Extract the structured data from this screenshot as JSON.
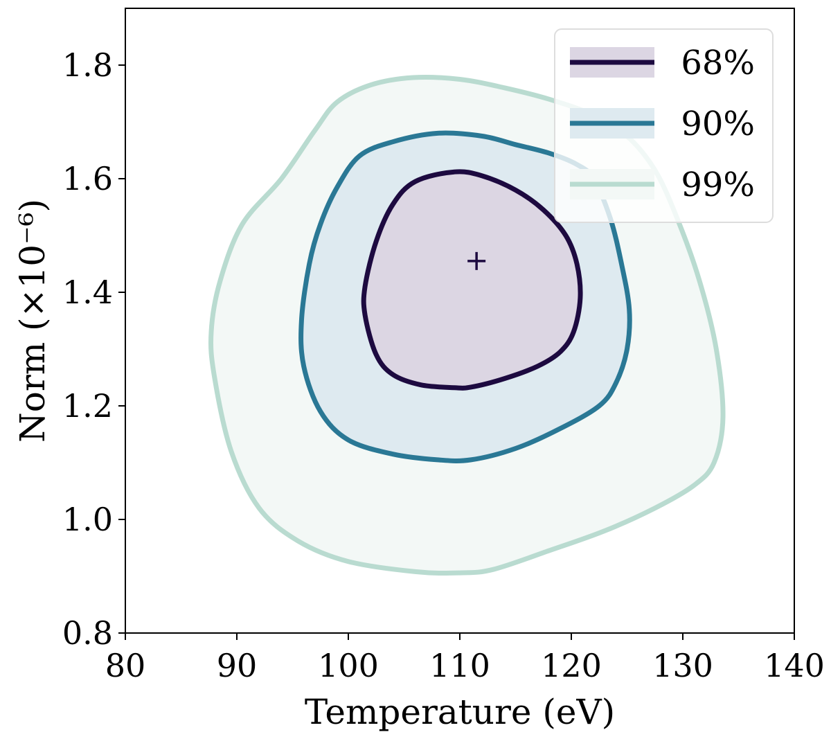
{
  "chart_data": {
    "type": "contour",
    "title": "",
    "xlabel": "Temperature (eV)",
    "ylabel": "Norm (×10⁻⁶)",
    "xlim": [
      80,
      140
    ],
    "ylim": [
      0.8,
      1.9
    ],
    "xticks": [
      80,
      90,
      100,
      110,
      120,
      130,
      140
    ],
    "xtick_labels": [
      "80",
      "90",
      "100",
      "110",
      "120",
      "130",
      "140"
    ],
    "yticks": [
      0.8,
      1.0,
      1.2,
      1.4,
      1.6,
      1.8
    ],
    "ytick_labels": [
      "0.8",
      "1.0",
      "1.2",
      "1.4",
      "1.6",
      "1.8"
    ],
    "best_fit": {
      "x": 111.5,
      "y": 1.455,
      "marker": "+"
    },
    "legend_position": "top-right",
    "series": [
      {
        "name": "99%",
        "line_color": "#b9dbd0",
        "fill_color": "#f3f8f6",
        "points": [
          [
            105.8,
            1.778
          ],
          [
            110,
            1.775
          ],
          [
            114,
            1.76
          ],
          [
            118,
            1.74
          ],
          [
            122,
            1.712
          ],
          [
            125,
            1.675
          ],
          [
            127.5,
            1.615
          ],
          [
            129.5,
            1.53
          ],
          [
            131.5,
            1.42
          ],
          [
            133,
            1.3
          ],
          [
            133.6,
            1.18
          ],
          [
            132.8,
            1.1
          ],
          [
            131,
            1.06
          ],
          [
            127.5,
            1.02
          ],
          [
            123,
            0.98
          ],
          [
            118,
            0.945
          ],
          [
            113,
            0.912
          ],
          [
            110,
            0.906
          ],
          [
            106,
            0.908
          ],
          [
            100,
            0.926
          ],
          [
            95.5,
            0.962
          ],
          [
            92,
            1.02
          ],
          [
            89.5,
            1.12
          ],
          [
            88,
            1.25
          ],
          [
            87.7,
            1.33
          ],
          [
            88.5,
            1.42
          ],
          [
            90.5,
            1.52
          ],
          [
            94,
            1.6
          ],
          [
            97,
            1.685
          ],
          [
            99,
            1.735
          ],
          [
            102,
            1.765
          ]
        ]
      },
      {
        "name": "90%",
        "line_color": "#2a7895",
        "fill_color": "#deeaf0",
        "points": [
          [
            108,
            1.68
          ],
          [
            112,
            1.675
          ],
          [
            115,
            1.66
          ],
          [
            118,
            1.645
          ],
          [
            120.5,
            1.625
          ],
          [
            122,
            1.6
          ],
          [
            123.5,
            1.53
          ],
          [
            124.5,
            1.45
          ],
          [
            125.2,
            1.37
          ],
          [
            125,
            1.3
          ],
          [
            124,
            1.24
          ],
          [
            122.5,
            1.2
          ],
          [
            119,
            1.16
          ],
          [
            115,
            1.125
          ],
          [
            111,
            1.105
          ],
          [
            108,
            1.105
          ],
          [
            104,
            1.115
          ],
          [
            100,
            1.14
          ],
          [
            97.5,
            1.19
          ],
          [
            96,
            1.27
          ],
          [
            95.8,
            1.35
          ],
          [
            96.5,
            1.45
          ],
          [
            97.5,
            1.52
          ],
          [
            99,
            1.585
          ],
          [
            101,
            1.64
          ],
          [
            104,
            1.665
          ]
        ]
      },
      {
        "name": "68%",
        "line_color": "#1d0a40",
        "fill_color": "#dcd6e3",
        "points": [
          [
            109.5,
            1.612
          ],
          [
            112,
            1.605
          ],
          [
            115,
            1.58
          ],
          [
            117.5,
            1.545
          ],
          [
            119.5,
            1.5
          ],
          [
            120.5,
            1.45
          ],
          [
            120.8,
            1.39
          ],
          [
            120.2,
            1.33
          ],
          [
            119,
            1.295
          ],
          [
            117,
            1.27
          ],
          [
            114,
            1.248
          ],
          [
            111,
            1.233
          ],
          [
            109.5,
            1.232
          ],
          [
            106.5,
            1.237
          ],
          [
            104,
            1.255
          ],
          [
            102.5,
            1.29
          ],
          [
            101.5,
            1.36
          ],
          [
            101.5,
            1.41
          ],
          [
            102.5,
            1.49
          ],
          [
            104,
            1.555
          ],
          [
            106,
            1.595
          ]
        ]
      }
    ],
    "legend": [
      {
        "label": "68%",
        "line_color": "#1d0a40",
        "fill_color": "#dcd6e3"
      },
      {
        "label": "90%",
        "line_color": "#2a7895",
        "fill_color": "#deeaf0"
      },
      {
        "label": "99%",
        "line_color": "#b9dbd0",
        "fill_color": "#f3f8f6"
      }
    ]
  }
}
